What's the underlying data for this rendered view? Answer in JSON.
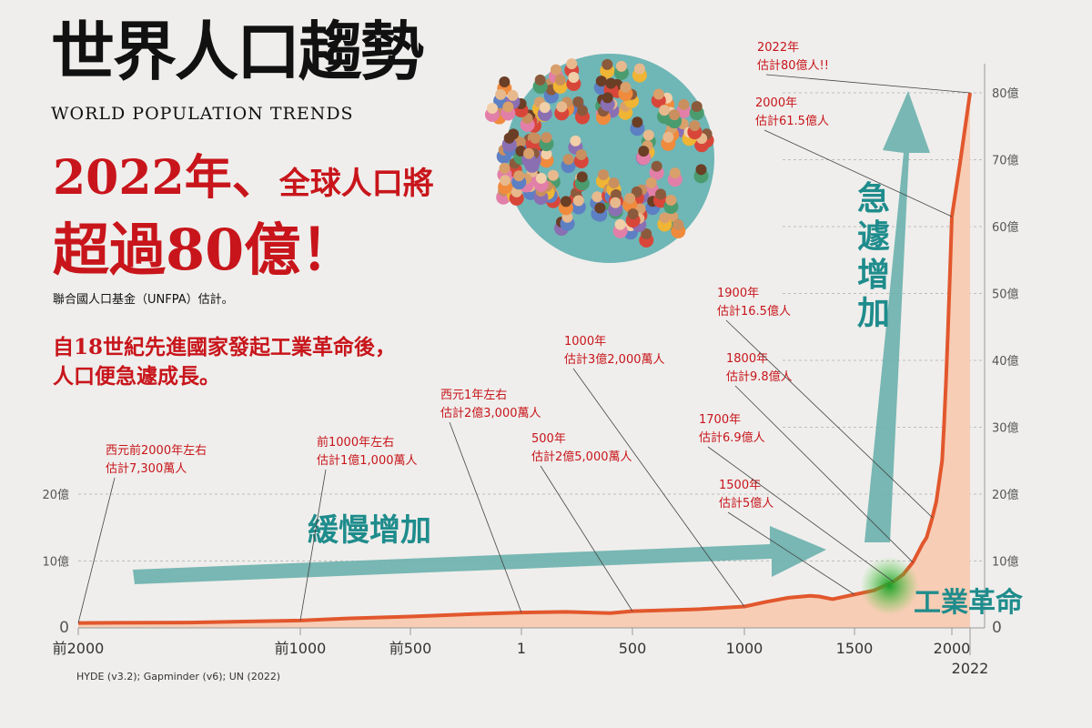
{
  "title_zh": "世界人口趨勢",
  "title_en": "WORLD POPULATION TRENDS",
  "headline": {
    "part1": "2022年、",
    "part2": "全球人口將",
    "part3": "超過80億！"
  },
  "source_note": "聯合國人口基金（UNFPA）估計。",
  "subtext": {
    "line1": "自18世紀先進國家發起工業革命後，",
    "line2": "人口便急遽成長。"
  },
  "data_source": "HYDE (v3.2); Gapminder (v6); UN (2022)",
  "arrow_labels": {
    "slow": "緩慢增加",
    "fast": "急遽增加",
    "industrial": "工業革命"
  },
  "colors": {
    "line": "#e2572d",
    "area": "#f7cdb5",
    "arrow": "#6ab0ad",
    "annotation": "#c8151b",
    "teal_text": "#1f8c8c",
    "grid": "#bdbdbd"
  },
  "chart_data": {
    "type": "area",
    "xlabel": "",
    "ylabel": "",
    "x_ticks": [
      {
        "value": -2000,
        "label": "前2000"
      },
      {
        "value": -1000,
        "label": "前1000"
      },
      {
        "value": -500,
        "label": "前500"
      },
      {
        "value": 1,
        "label": "1"
      },
      {
        "value": 500,
        "label": "500"
      },
      {
        "value": 1000,
        "label": "1000"
      },
      {
        "value": 1500,
        "label": "1500"
      },
      {
        "value": 2000,
        "label": "2000"
      },
      {
        "value": 2022,
        "label": "2022"
      }
    ],
    "y_ticks_left": [
      {
        "value": 0,
        "label": "0"
      },
      {
        "value": 10,
        "label": "10億"
      },
      {
        "value": 20,
        "label": "20億"
      }
    ],
    "y_ticks_right": [
      {
        "value": 0,
        "label": "0"
      },
      {
        "value": 10,
        "label": "10億"
      },
      {
        "value": 20,
        "label": "20億"
      },
      {
        "value": 30,
        "label": "30億"
      },
      {
        "value": 40,
        "label": "40億"
      },
      {
        "value": 50,
        "label": "50億"
      },
      {
        "value": 60,
        "label": "60億"
      },
      {
        "value": 70,
        "label": "70億"
      },
      {
        "value": 80,
        "label": "80億"
      }
    ],
    "series": [
      {
        "x": [
          -2000,
          -1500,
          -1000,
          -800,
          -500,
          -200,
          1,
          200,
          400,
          500,
          800,
          1000,
          1100,
          1200,
          1300,
          1340,
          1400,
          1500,
          1600,
          1700,
          1750,
          1800,
          1850,
          1870,
          1900,
          1920,
          1950,
          1960,
          1970,
          1980,
          1990,
          2000,
          2010,
          2022
        ],
        "y": [
          0.73,
          0.8,
          1.1,
          1.4,
          1.7,
          2.1,
          2.3,
          2.4,
          2.2,
          2.5,
          2.8,
          3.2,
          3.9,
          4.5,
          4.8,
          4.7,
          4.3,
          5.0,
          5.6,
          6.9,
          8.0,
          9.8,
          12.6,
          13.5,
          16.5,
          18.9,
          25.0,
          30.3,
          37.0,
          44.4,
          52.9,
          61.5,
          69.6,
          80.0
        ]
      }
    ],
    "annotations": [
      {
        "x": -2000,
        "y": 0.73,
        "line1": "西元前2000年左右",
        "line2": "估計7,300萬人"
      },
      {
        "x": -1000,
        "y": 1.1,
        "line1": "前1000年左右",
        "line2": "估計1億1,000萬人"
      },
      {
        "x": 1,
        "y": 2.3,
        "line1": "西元1年左右",
        "line2": "估計2億3,000萬人"
      },
      {
        "x": 500,
        "y": 2.5,
        "line1": "500年",
        "line2": "估計2億5,000萬人"
      },
      {
        "x": 1000,
        "y": 3.2,
        "line1": "1000年",
        "line2": "估計3億2,000萬人"
      },
      {
        "x": 1500,
        "y": 5.0,
        "line1": "1500年",
        "line2": "估計5億人"
      },
      {
        "x": 1700,
        "y": 6.9,
        "line1": "1700年",
        "line2": "估計6.9億人"
      },
      {
        "x": 1800,
        "y": 9.8,
        "line1": "1800年",
        "line2": "估計9.8億人"
      },
      {
        "x": 1900,
        "y": 16.5,
        "line1": "1900年",
        "line2": "估計16.5億人"
      },
      {
        "x": 2000,
        "y": 61.5,
        "line1": "2000年",
        "line2": "估計61.5億人"
      },
      {
        "x": 2022,
        "y": 80.0,
        "line1": "2022年",
        "line2": "估計80億人!!"
      }
    ]
  }
}
